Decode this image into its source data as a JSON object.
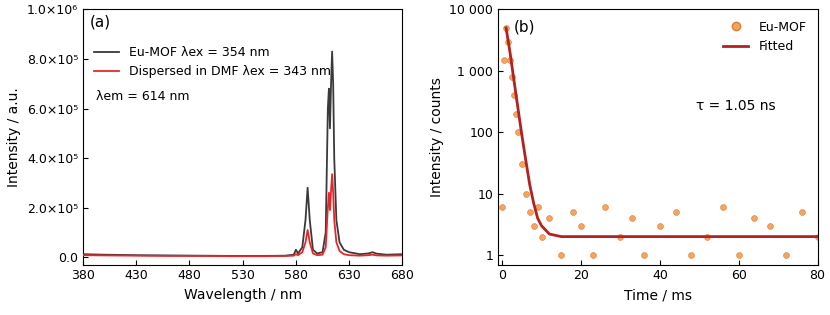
{
  "chart_data": [
    {
      "type": "line",
      "panel_label": "(a)",
      "annotation": "λem = 614 nm",
      "x_label": "Wavelength / nm",
      "y_label": "Intensity / a.u.",
      "x": [
        380,
        400,
        430,
        460,
        490,
        520,
        550,
        570,
        578,
        580,
        582,
        586,
        589,
        591,
        593,
        596,
        600,
        605,
        608,
        610,
        611,
        612,
        613,
        614,
        615,
        616,
        618,
        621,
        625,
        630,
        640,
        648,
        652,
        656,
        665,
        680
      ],
      "series": [
        {
          "name": "Eu-MOF λex = 354 nm",
          "color": "#3a3a3a",
          "values": [
            12000,
            10000,
            8000,
            7000,
            6000,
            5000,
            5000,
            6000,
            10000,
            30000,
            15000,
            40000,
            150000,
            280000,
            150000,
            30000,
            15000,
            20000,
            100000,
            600000,
            680000,
            520000,
            700000,
            830000,
            700000,
            400000,
            150000,
            60000,
            30000,
            20000,
            12000,
            15000,
            20000,
            14000,
            10000,
            12000
          ]
        },
        {
          "name": "Dispersed in DMF λex = 343 nm",
          "color": "#e8262a",
          "values": [
            8000,
            7000,
            6000,
            5000,
            5000,
            4000,
            4000,
            5000,
            6000,
            12000,
            8000,
            20000,
            60000,
            110000,
            60000,
            15000,
            8000,
            10000,
            40000,
            200000,
            260000,
            190000,
            270000,
            335000,
            260000,
            150000,
            60000,
            25000,
            12000,
            8000,
            6000,
            8000,
            10000,
            7000,
            6000,
            7000
          ]
        }
      ],
      "xlim": [
        380,
        680
      ],
      "xticks": [
        380,
        430,
        480,
        530,
        580,
        630,
        680
      ],
      "ylim": [
        -30000,
        1000000
      ],
      "yticks": [
        {
          "value": 0,
          "label": "0.0"
        },
        {
          "value": 200000,
          "label": "2.0×10⁵"
        },
        {
          "value": 400000,
          "label": "4.0×10⁵"
        },
        {
          "value": 600000,
          "label": "6.0×10⁵"
        },
        {
          "value": 800000,
          "label": "8.0×10⁵"
        },
        {
          "value": 1000000,
          "label": "1.0×10⁶"
        }
      ],
      "legend": "upper left"
    },
    {
      "type": "scatter",
      "panel_label": "(b)",
      "annotation": "τ = 1.05 ns",
      "x_label": "Time / ms",
      "y_label": "Intensity / counts",
      "log": "y",
      "series": [
        {
          "name": "Eu-MOF",
          "type": "scatter",
          "color": "#f4a460",
          "marker": "circle",
          "x": [
            0,
            0.5,
            1,
            1.5,
            2,
            2.5,
            3,
            3.5,
            4,
            5,
            6,
            7,
            8,
            9,
            10,
            12,
            15,
            18,
            20,
            23,
            26,
            30,
            33,
            36,
            40,
            44,
            48,
            52,
            56,
            60,
            64,
            68,
            72,
            76,
            80
          ],
          "values": [
            6,
            1500,
            5000,
            3000,
            1500,
            800,
            400,
            200,
            100,
            30,
            10,
            5,
            3,
            6,
            2,
            4,
            1,
            5,
            3,
            1,
            6,
            2,
            4,
            1,
            3,
            5,
            1,
            2,
            6,
            1,
            4,
            3,
            1,
            5,
            2
          ]
        },
        {
          "name": "Fitted",
          "type": "line",
          "color": "#b22222",
          "line_style": "solid",
          "x": [
            1,
            2,
            3,
            4,
            5,
            6,
            7,
            8,
            9,
            10,
            12,
            15,
            20,
            40,
            60,
            80
          ],
          "values": [
            5000,
            2000,
            700,
            250,
            90,
            35,
            14,
            7,
            4,
            3,
            2.2,
            2,
            2,
            2,
            2,
            2
          ]
        }
      ],
      "xlim": [
        -1,
        80
      ],
      "xticks": [
        0,
        20,
        40,
        60,
        80
      ],
      "ylim": [
        0.7,
        10000
      ],
      "yticks": [
        1,
        10,
        100,
        {
          "value": 1000,
          "label": "1 000"
        },
        {
          "value": 10000,
          "label": "10 000"
        }
      ],
      "legend": "upper right"
    }
  ]
}
